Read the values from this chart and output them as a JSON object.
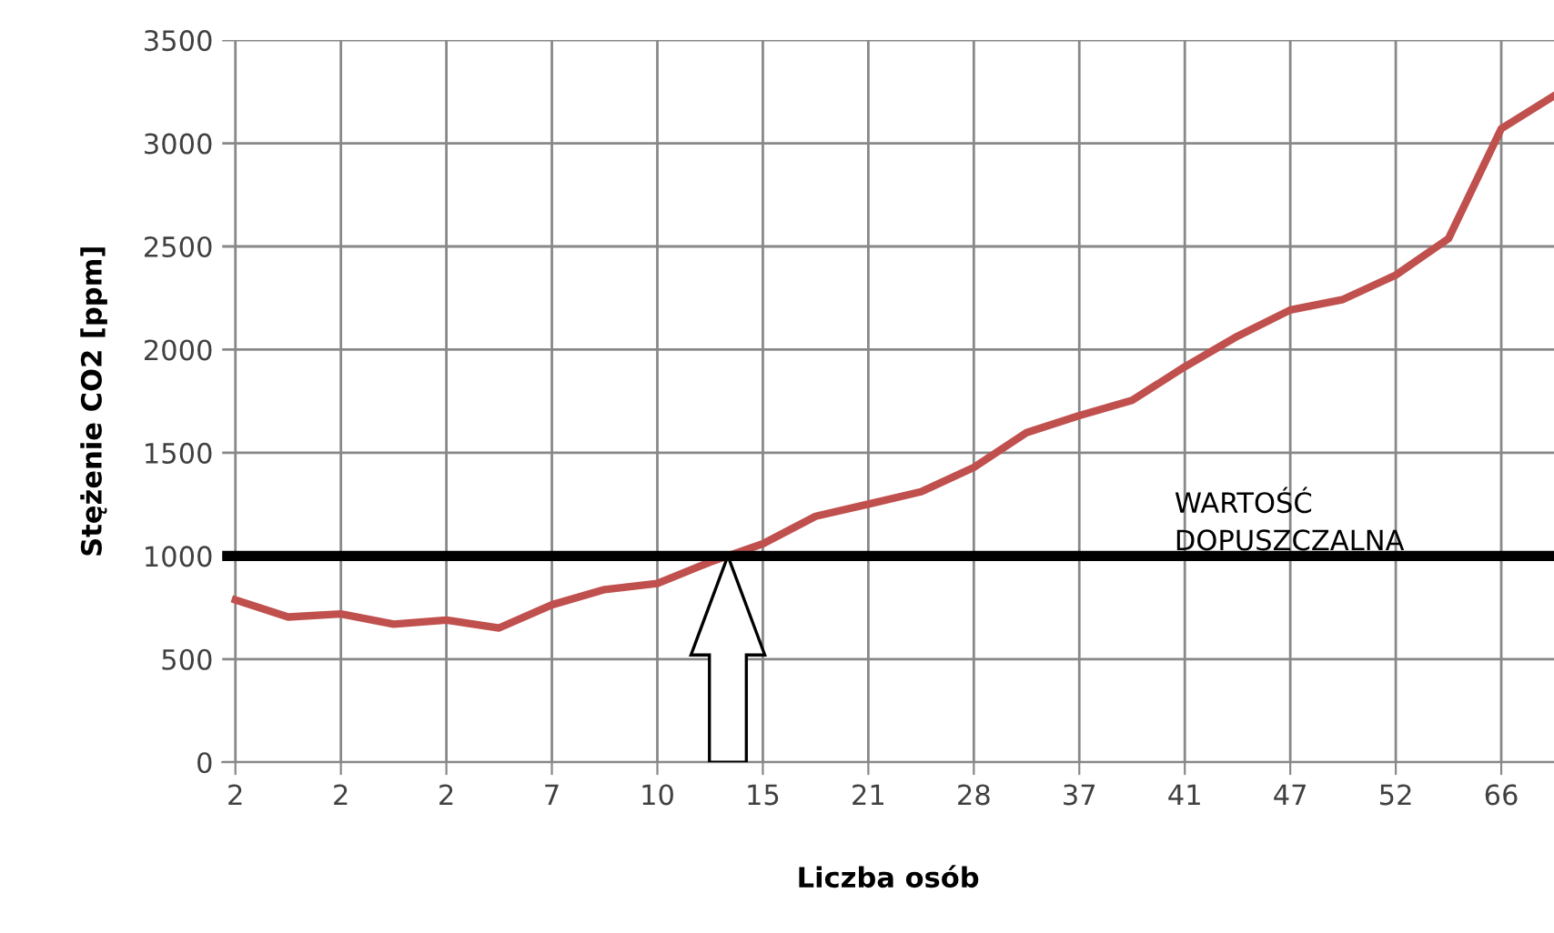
{
  "chart_data": {
    "type": "line",
    "xlabel": "Liczba osób",
    "ylabel": "Stężenie CO2 [ppm]",
    "categories": [
      "2",
      null,
      "2",
      null,
      "2",
      null,
      "7",
      null,
      "10",
      null,
      "15",
      null,
      "21",
      null,
      "28",
      null,
      "37",
      null,
      "41",
      null,
      "47",
      null,
      "52",
      null,
      "66",
      null
    ],
    "series": [
      {
        "color": "#c0504d",
        "values": [
          787,
          704,
          719,
          669,
          689,
          651,
          763,
          837,
          867,
          970,
          1059,
          1192,
          1251,
          1311,
          1429,
          1598,
          1680,
          1754,
          1917,
          2065,
          2192,
          2243,
          2361,
          2538,
          3071,
          3230
        ]
      }
    ],
    "ylim": [
      0,
      3500
    ],
    "yticks": [
      0,
      500,
      1000,
      1500,
      2000,
      2500,
      3000,
      3500
    ],
    "grid": true,
    "legend": false,
    "marker": "none",
    "line_style": "solid",
    "ref_lines": [
      {
        "axis": "y",
        "value": 1000,
        "label": "WARTOŚĆ\nDOPUSZCZALNA",
        "color": "#000000"
      }
    ]
  }
}
